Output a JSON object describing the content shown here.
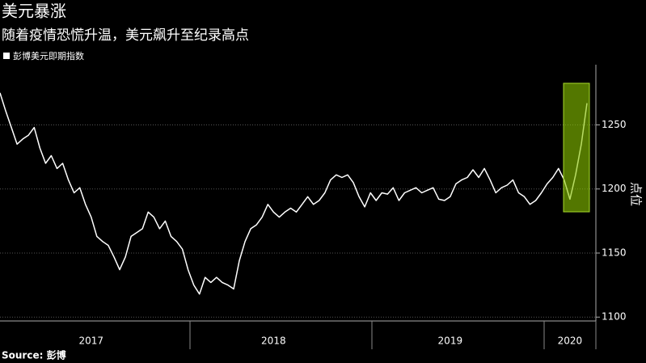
{
  "chart_data": {
    "type": "line",
    "title": "美元暴涨",
    "subtitle": "随着疫情恐慌升温，美元飙升至纪录高点",
    "y_label": "点位",
    "source": "Source: 彭博",
    "categories": [
      null,
      null,
      null,
      null,
      null,
      null,
      null,
      null,
      null,
      null,
      null,
      null,
      null,
      null,
      null,
      null,
      "2017",
      null,
      null,
      null,
      null,
      null,
      null,
      null,
      null,
      null,
      null,
      null,
      null,
      null,
      null,
      null,
      null,
      null,
      null,
      null,
      null,
      null,
      null,
      null,
      null,
      null,
      null,
      null,
      null,
      null,
      null,
      null,
      "2018",
      null,
      null,
      null,
      null,
      null,
      null,
      null,
      null,
      null,
      null,
      null,
      null,
      null,
      null,
      null,
      null,
      null,
      null,
      null,
      null,
      null,
      null,
      null,
      null,
      null,
      null,
      null,
      null,
      null,
      null,
      "2019",
      null,
      null,
      null,
      null,
      null,
      null,
      null,
      null,
      null,
      null,
      null,
      null,
      null,
      null,
      null,
      null,
      null,
      null,
      null,
      null,
      "2020",
      null,
      null,
      null
    ],
    "series": [
      {
        "name": "彭博美元即期指数",
        "color": "#ffffff",
        "values": [
          1275,
          1261,
          1248,
          1235,
          1239,
          1242,
          1248,
          1232,
          1220,
          1226,
          1216,
          1220,
          1207,
          1197,
          1201,
          1188,
          1178,
          1163,
          1159,
          1156,
          1147,
          1137,
          1147,
          1163,
          1166,
          1169,
          1182,
          1178,
          1169,
          1175,
          1163,
          1159,
          1153,
          1137,
          1125,
          1118,
          1131,
          1127,
          1131,
          1127,
          1125,
          1122,
          1144,
          1159,
          1169,
          1172,
          1178,
          1188,
          1182,
          1178,
          1182,
          1185,
          1182,
          1188,
          1194,
          1188,
          1191,
          1197,
          1207,
          1211,
          1209,
          1211,
          1205,
          1194,
          1186,
          1197,
          1191,
          1197,
          1196,
          1201,
          1191,
          1197,
          1199,
          1201,
          1197,
          1199,
          1201,
          1192,
          1191,
          1194,
          1204,
          1207,
          1209,
          1215,
          1209,
          1216,
          1207,
          1197,
          1201,
          1203,
          1207,
          1197,
          1194,
          1188,
          1191,
          1197,
          1204,
          1209,
          1216,
          1207,
          1192,
          1211,
          1235,
          1267
        ]
      }
    ],
    "ylim": [
      1097,
      1297
    ],
    "yticks": [
      1100,
      1150,
      1200,
      1250
    ],
    "grid": true
  }
}
